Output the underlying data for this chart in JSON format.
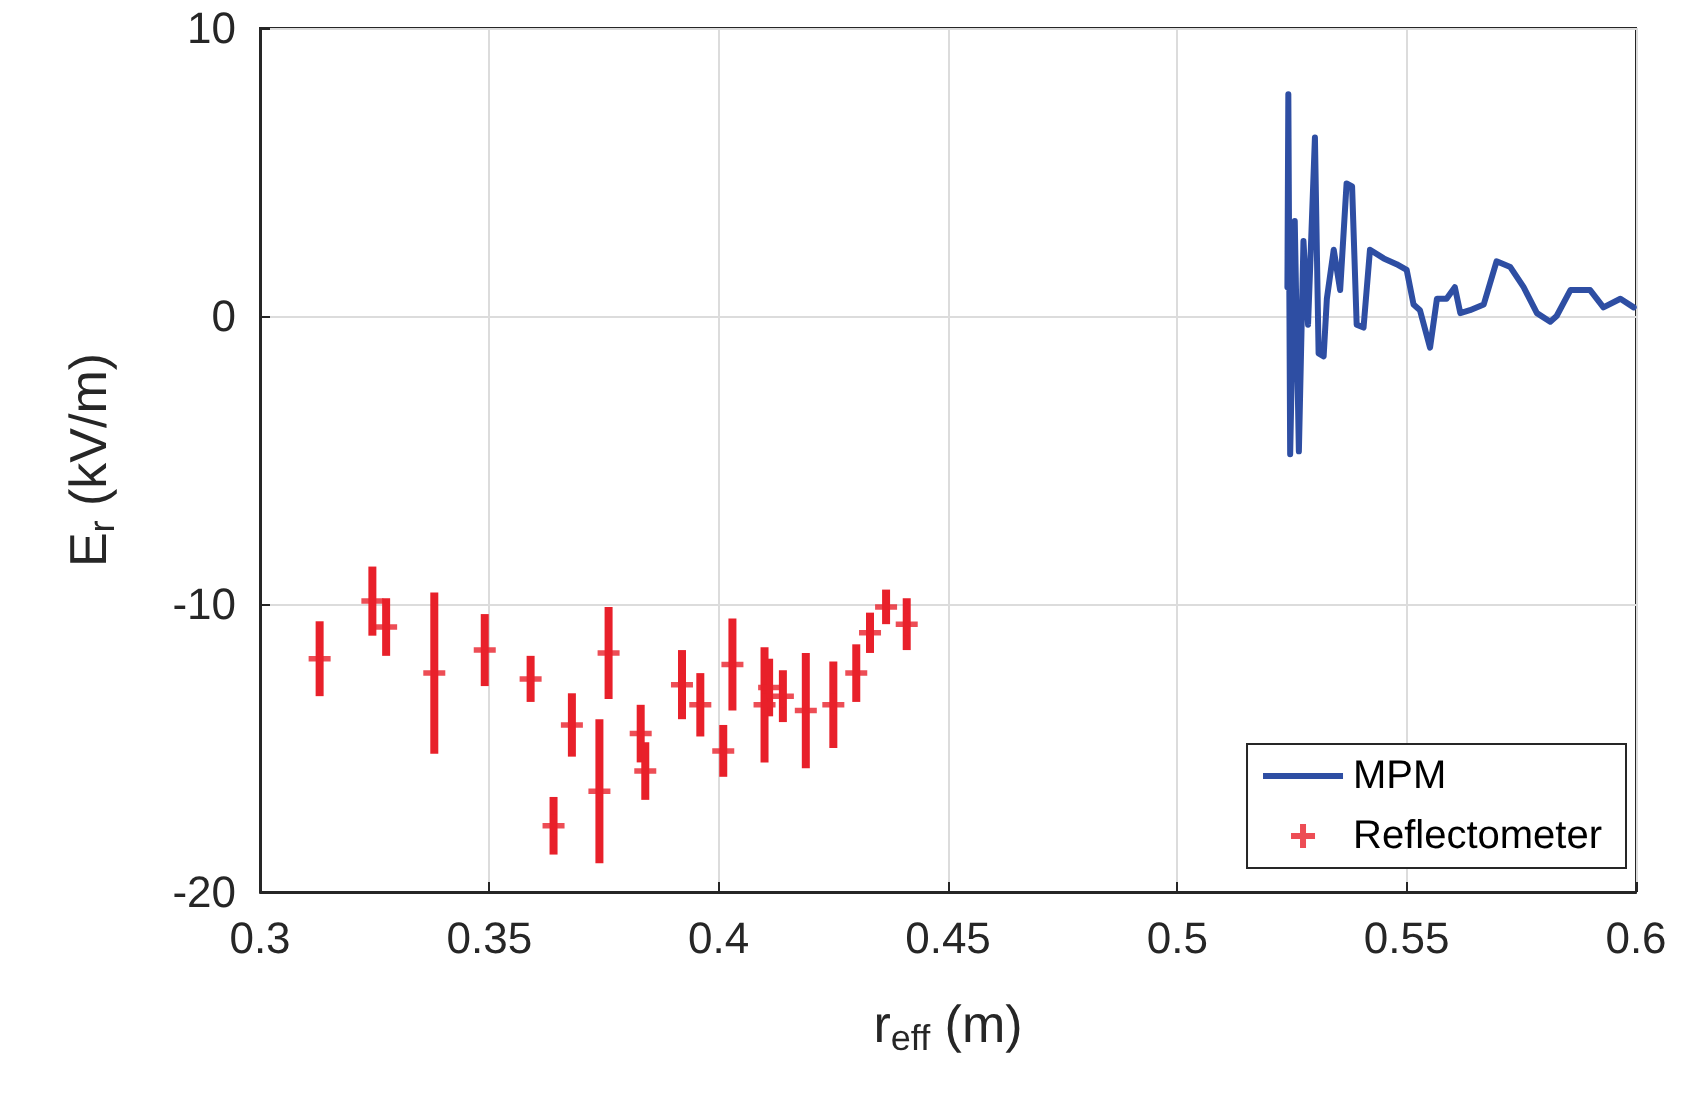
{
  "chart_data": {
    "type": "line",
    "xlabel": "r$_{eff}$ (m)",
    "ylabel": "E$_{r}$ (kV/m)",
    "xlim": [
      0.3,
      0.6
    ],
    "xticks": [
      0.3,
      0.35,
      0.4,
      0.45,
      0.5,
      0.55,
      0.6
    ],
    "ylim": [
      -20,
      10
    ],
    "yticks": [
      -20,
      -10,
      0,
      10
    ],
    "grid": true,
    "legend": "bottom right",
    "series": [
      {
        "name": "MPM",
        "color": "#2e4ea3",
        "marker": "none",
        "line_style": "solid",
        "x": [
          0.524,
          0.5242,
          0.5246,
          0.5256,
          0.5265,
          0.5275,
          0.5285,
          0.53,
          0.5308,
          0.5319,
          0.5326,
          0.5341,
          0.5355,
          0.5369,
          0.5381,
          0.5391,
          0.5406,
          0.542,
          0.545,
          0.5478,
          0.55,
          0.5515,
          0.5529,
          0.5551,
          0.5566,
          0.5587,
          0.5605,
          0.5617,
          0.5638,
          0.5668,
          0.5696,
          0.5726,
          0.5755,
          0.5784,
          0.5813,
          0.5827,
          0.5857,
          0.59,
          0.5929,
          0.5966,
          0.5995
        ],
        "values": [
          1.0,
          7.7,
          -4.8,
          3.3,
          -4.7,
          2.6,
          -0.3,
          6.2,
          -1.3,
          -1.4,
          0.6,
          2.3,
          0.9,
          4.6,
          4.5,
          -0.3,
          -0.4,
          2.3,
          2.0,
          1.8,
          1.6,
          0.4,
          0.2,
          -1.1,
          0.6,
          0.6,
          1.0,
          0.1,
          0.2,
          0.4,
          1.9,
          1.7,
          1.0,
          0.1,
          -0.2,
          0.0,
          0.9,
          0.9,
          0.3,
          0.6,
          0.3
        ]
      },
      {
        "name": "Reflectometer",
        "type": "scatter",
        "color": "#e8202a",
        "marker": "cross",
        "x": [
          0.313,
          0.3245,
          0.3275,
          0.338,
          0.349,
          0.359,
          0.364,
          0.368,
          0.374,
          0.376,
          0.383,
          0.384,
          0.392,
          0.396,
          0.401,
          0.403,
          0.41,
          0.411,
          0.414,
          0.419,
          0.425,
          0.43,
          0.433,
          0.4365,
          0.441
        ],
        "values": [
          -11.9,
          -9.9,
          -10.8,
          -12.4,
          -11.6,
          -12.6,
          -17.7,
          -14.2,
          -16.5,
          -11.7,
          -14.5,
          -15.8,
          -12.8,
          -13.5,
          -15.1,
          -12.1,
          -13.5,
          -12.9,
          -13.2,
          -13.7,
          -13.5,
          -12.4,
          -11.0,
          -10.1,
          -10.7
        ],
        "errors": [
          1.3,
          1.2,
          1.0,
          2.8,
          1.25,
          0.8,
          1.0,
          1.1,
          2.5,
          1.6,
          1.0,
          1.0,
          1.2,
          1.1,
          0.9,
          1.6,
          2.0,
          1.0,
          0.9,
          2.0,
          1.5,
          1.0,
          0.7,
          0.6,
          0.9
        ]
      }
    ]
  }
}
